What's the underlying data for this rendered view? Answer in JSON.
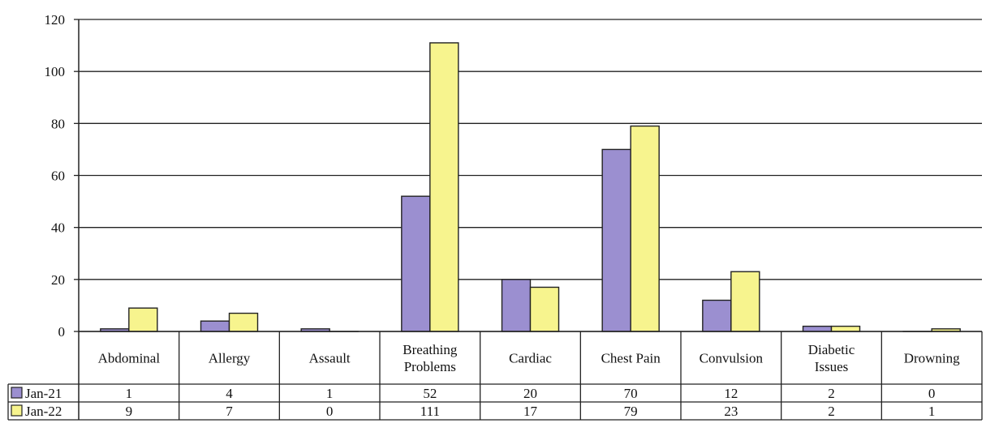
{
  "chart_data": {
    "type": "bar",
    "title": "",
    "xlabel": "",
    "ylabel": "",
    "ylim": [
      0,
      120
    ],
    "yticks": [
      0,
      20,
      40,
      60,
      80,
      100,
      120
    ],
    "grid": true,
    "legend": "data-table-left",
    "categories": [
      [
        "Abdominal"
      ],
      [
        "Allergy"
      ],
      [
        "Assault"
      ],
      [
        "Breathing",
        "Problems"
      ],
      [
        "Cardiac"
      ],
      [
        "Chest Pain"
      ],
      [
        "Convulsion"
      ],
      [
        "Diabetic",
        "Issues"
      ],
      [
        "Drowning"
      ]
    ],
    "series": [
      {
        "name": "Jan-21",
        "color": "#9b8fd0",
        "values": [
          1,
          4,
          1,
          52,
          20,
          70,
          12,
          2,
          0
        ]
      },
      {
        "name": "Jan-22",
        "color": "#f7f48e",
        "values": [
          9,
          7,
          0,
          111,
          17,
          79,
          23,
          2,
          1
        ]
      }
    ]
  }
}
